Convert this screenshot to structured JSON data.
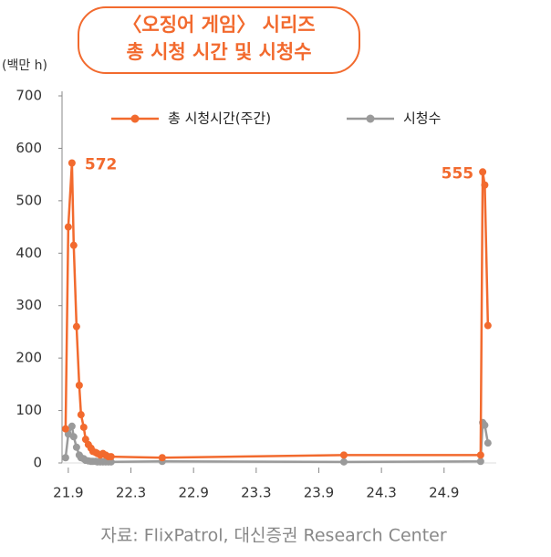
{
  "chart_data": {
    "type": "line",
    "title": [
      "〈오징어 게임〉 시리즈",
      "총 시청 시간 및 시청수"
    ],
    "y_label": "(백만 h)",
    "source": "자료: FlixPatrol, 대신증권 Research Center",
    "x": [
      260.74,
      261,
      261.35,
      261.52,
      261.79,
      262.05,
      262.22,
      262.48,
      262.66,
      262.92,
      263.18,
      263.36,
      263.62,
      263.79,
      264.06,
      264.32,
      264.58,
      264.84,
      265.1,
      270,
      287.4,
      300.5,
      300.7,
      300.9,
      301.2
    ],
    "series": [
      {
        "name": "총 시청시간(주간)",
        "color": "#f26a2e",
        "values": [
          65,
          450,
          572,
          415,
          260,
          148,
          92,
          68,
          45,
          35,
          28,
          22,
          20,
          18,
          15,
          18,
          15,
          12,
          12,
          10,
          15,
          15,
          555,
          530,
          262
        ],
        "value_labels": [
          null,
          null,
          "572",
          null,
          null,
          null,
          null,
          null,
          null,
          null,
          null,
          null,
          null,
          null,
          null,
          null,
          null,
          null,
          null,
          null,
          null,
          null,
          "555",
          null,
          null
        ]
      },
      {
        "name": "시청수",
        "color": "#9a9a9a",
        "values": [
          10,
          55,
          70,
          50,
          30,
          15,
          10,
          8,
          5,
          4,
          3,
          3,
          3,
          2,
          2,
          2,
          2,
          2,
          2,
          3,
          2,
          3,
          77,
          72,
          38
        ]
      }
    ],
    "xlim": [
      260.4,
      302
    ],
    "xticks": [
      {
        "value": 261,
        "label": "21.9"
      },
      {
        "value": 267,
        "label": "22.3"
      },
      {
        "value": 273,
        "label": "22.9"
      },
      {
        "value": 279,
        "label": "23.3"
      },
      {
        "value": 285,
        "label": "23.9"
      },
      {
        "value": 291,
        "label": "24.3"
      },
      {
        "value": 297,
        "label": "24.9"
      }
    ],
    "ylim": [
      0,
      700
    ],
    "yticks": [
      0,
      100,
      200,
      300,
      400,
      500,
      600,
      700
    ],
    "grid": false,
    "legend": "top"
  }
}
